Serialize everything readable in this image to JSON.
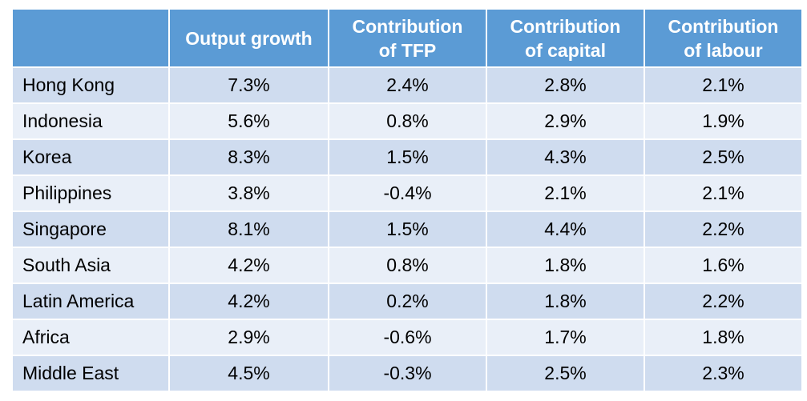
{
  "chart_data": {
    "type": "table",
    "columns": [
      "",
      "Output growth",
      "Contribution of TFP",
      "Contribution of capital",
      "Contribution of labour"
    ],
    "header_lines": [
      [
        ""
      ],
      [
        "Output growth"
      ],
      [
        "Contribution",
        "of TFP"
      ],
      [
        "Contribution",
        "of capital"
      ],
      [
        "Contribution",
        "of labour"
      ]
    ],
    "rows": [
      [
        "Hong Kong",
        "7.3%",
        "2.4%",
        "2.8%",
        "2.1%"
      ],
      [
        "Indonesia",
        "5.6%",
        "0.8%",
        "2.9%",
        "1.9%"
      ],
      [
        "Korea",
        "8.3%",
        "1.5%",
        "4.3%",
        "2.5%"
      ],
      [
        "Philippines",
        "3.8%",
        "-0.4%",
        "2.1%",
        "2.1%"
      ],
      [
        "Singapore",
        "8.1%",
        "1.5%",
        "4.4%",
        "2.2%"
      ],
      [
        "South Asia",
        "4.2%",
        "0.8%",
        "1.8%",
        "1.6%"
      ],
      [
        "Latin America",
        "4.2%",
        "0.2%",
        "1.8%",
        "2.2%"
      ],
      [
        "Africa",
        "2.9%",
        "-0.6%",
        "1.7%",
        "1.8%"
      ],
      [
        "Middle East",
        "4.5%",
        "-0.3%",
        "2.5%",
        "2.3%"
      ]
    ],
    "colors": {
      "header_bg": "#5b9bd5",
      "header_text": "#ffffff",
      "row_odd": "#cfdcef",
      "row_even": "#e9eff8",
      "cell_text": "#000000"
    }
  }
}
